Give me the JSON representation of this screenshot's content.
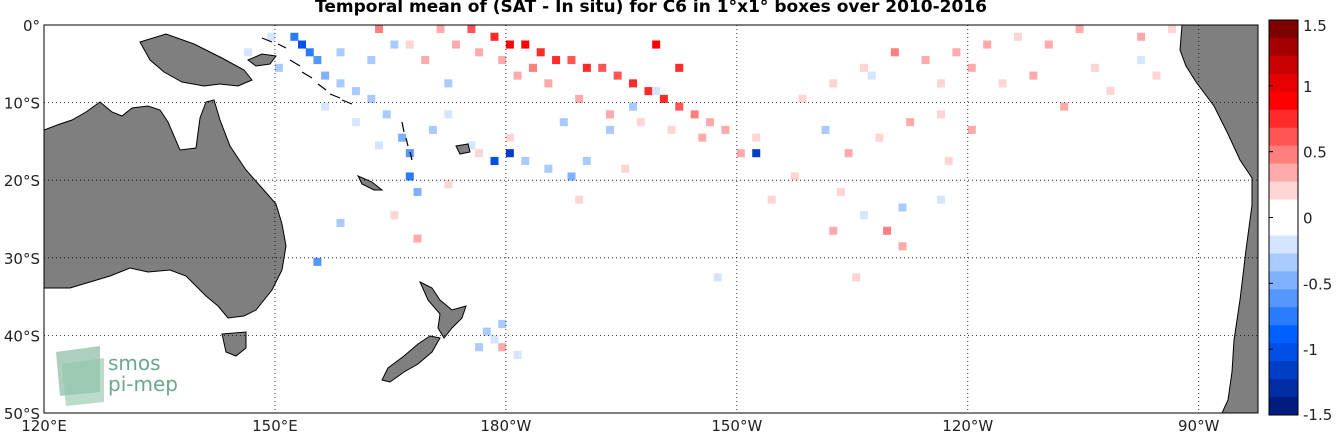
{
  "title": "Temporal mean of (SAT - In situ) for C6 in 1°x1° boxes over 2010-2016",
  "axes": {
    "lat_labels": [
      "0°",
      "10°S",
      "20°S",
      "30°S",
      "40°S",
      "50°S"
    ],
    "lon_labels": [
      "120°E",
      "150°E",
      "180°W",
      "150°W",
      "120°W",
      "90°W"
    ],
    "lon_range_deg_east": [
      120,
      277.7
    ],
    "lat_range": [
      0,
      -50
    ],
    "grid": "dotted"
  },
  "colorbar": {
    "min": -1.5,
    "max": 1.5,
    "tick_labels": [
      "1.5",
      "1",
      "0.5",
      "0",
      "-0.5",
      "-1",
      "-1.5"
    ],
    "tick_values": [
      1.5,
      1,
      0.5,
      0,
      -0.5,
      -1,
      -1.5
    ],
    "colors_top_to_bottom": [
      "#7f0000",
      "#a50000",
      "#c80000",
      "#e60000",
      "#ff0000",
      "#ff2a2a",
      "#ff5555",
      "#ff7f7f",
      "#ffaaaa",
      "#ffd4d4",
      "#ffffff",
      "#ffffff",
      "#d4e6ff",
      "#aacbff",
      "#7fb1ff",
      "#5596ff",
      "#2a7cff",
      "#0061ff",
      "#004fe6",
      "#003ec8",
      "#002ca5",
      "#001c7f"
    ]
  },
  "land_color": "#7f7f7f",
  "logo": {
    "line1": "smos",
    "line2": "pi-mep",
    "color": "#6aa88a"
  },
  "anomaly_cells": [
    {
      "lon": 163,
      "lat": -1,
      "v": 0.5
    },
    {
      "lon": 171,
      "lat": -1,
      "v": 0.3
    },
    {
      "lon": 175,
      "lat": -1,
      "v": 0.6
    },
    {
      "lon": 178,
      "lat": -2,
      "v": 0.7
    },
    {
      "lon": 180,
      "lat": -3,
      "v": 0.9
    },
    {
      "lon": 182,
      "lat": -3,
      "v": 0.9
    },
    {
      "lon": 184,
      "lat": -4,
      "v": 0.8
    },
    {
      "lon": 186,
      "lat": -5,
      "v": 0.7
    },
    {
      "lon": 188,
      "lat": -5,
      "v": 0.6
    },
    {
      "lon": 190,
      "lat": -6,
      "v": 0.7
    },
    {
      "lon": 192,
      "lat": -6,
      "v": 0.6
    },
    {
      "lon": 194,
      "lat": -7,
      "v": 0.6
    },
    {
      "lon": 196,
      "lat": -8,
      "v": 0.7
    },
    {
      "lon": 198,
      "lat": -9,
      "v": 0.8
    },
    {
      "lon": 200,
      "lat": -10,
      "v": 0.7
    },
    {
      "lon": 202,
      "lat": -11,
      "v": 0.6
    },
    {
      "lon": 204,
      "lat": -12,
      "v": 0.5
    },
    {
      "lon": 206,
      "lat": -13,
      "v": 0.4
    },
    {
      "lon": 208,
      "lat": -14,
      "v": 0.3
    },
    {
      "lon": 212,
      "lat": -15,
      "v": 0.2
    },
    {
      "lon": 185,
      "lat": -8,
      "v": 0.4
    },
    {
      "lon": 189,
      "lat": -10,
      "v": 0.3
    },
    {
      "lon": 193,
      "lat": -12,
      "v": 0.3
    },
    {
      "lon": 197,
      "lat": -13,
      "v": 0.2
    },
    {
      "lon": 201,
      "lat": -14,
      "v": 0.2
    },
    {
      "lon": 183,
      "lat": -6,
      "v": 0.5
    },
    {
      "lon": 179,
      "lat": -5,
      "v": 0.4
    },
    {
      "lon": 181,
      "lat": -7,
      "v": 0.3
    },
    {
      "lon": 176,
      "lat": -4,
      "v": 0.3
    },
    {
      "lon": 173,
      "lat": -3,
      "v": 0.3
    },
    {
      "lon": 169,
      "lat": -5,
      "v": 0.3
    },
    {
      "lon": 167,
      "lat": -3,
      "v": 0.2
    },
    {
      "lon": 199,
      "lat": -3,
      "v": 0.9
    },
    {
      "lon": 202,
      "lat": -6,
      "v": 0.8
    },
    {
      "lon": 196,
      "lat": -11,
      "v": 0.4
    },
    {
      "lon": 205,
      "lat": -15,
      "v": 0.3
    },
    {
      "lon": 230,
      "lat": -4,
      "v": 0.5
    },
    {
      "lon": 234,
      "lat": -5,
      "v": 0.3
    },
    {
      "lon": 238,
      "lat": -4,
      "v": 0.3
    },
    {
      "lon": 242,
      "lat": -3,
      "v": 0.3
    },
    {
      "lon": 246,
      "lat": -2,
      "v": 0.2
    },
    {
      "lon": 250,
      "lat": -3,
      "v": 0.3
    },
    {
      "lon": 254,
      "lat": -1,
      "v": 0.3
    },
    {
      "lon": 226,
      "lat": -6,
      "v": 0.2
    },
    {
      "lon": 222,
      "lat": -8,
      "v": 0.2
    },
    {
      "lon": 218,
      "lat": -10,
      "v": 0.2
    },
    {
      "lon": 236,
      "lat": -8,
      "v": 0.2
    },
    {
      "lon": 240,
      "lat": -6,
      "v": 0.3
    },
    {
      "lon": 244,
      "lat": -8,
      "v": 0.2
    },
    {
      "lon": 248,
      "lat": -7,
      "v": 0.3
    },
    {
      "lon": 256,
      "lat": -6,
      "v": 0.2
    },
    {
      "lon": 262,
      "lat": -2,
      "v": 0.3
    },
    {
      "lon": 266,
      "lat": -1,
      "v": 0.2
    },
    {
      "lon": 270,
      "lat": -1,
      "v": 0.3
    },
    {
      "lon": 232,
      "lat": -13,
      "v": 0.3
    },
    {
      "lon": 236,
      "lat": -12,
      "v": 0.2
    },
    {
      "lon": 240,
      "lat": -14,
      "v": 0.3
    },
    {
      "lon": 228,
      "lat": -15,
      "v": 0.2
    },
    {
      "lon": 237,
      "lat": -18,
      "v": 0.2
    },
    {
      "lon": 224,
      "lat": -17,
      "v": 0.3
    },
    {
      "lon": 210,
      "lat": -17,
      "v": 0.3
    },
    {
      "lon": 214,
      "lat": -23,
      "v": 0.2
    },
    {
      "lon": 222,
      "lat": -27,
      "v": 0.4
    },
    {
      "lon": 229,
      "lat": -27,
      "v": 0.5
    },
    {
      "lon": 231,
      "lat": -29,
      "v": 0.3
    },
    {
      "lon": 225,
      "lat": -33,
      "v": 0.2
    },
    {
      "lon": 180,
      "lat": -15,
      "v": 0.2
    },
    {
      "lon": 176,
      "lat": -17,
      "v": 0.2
    },
    {
      "lon": 172,
      "lat": -21,
      "v": 0.2
    },
    {
      "lon": 168,
      "lat": -28,
      "v": 0.3
    },
    {
      "lon": 165,
      "lat": -25,
      "v": 0.2
    },
    {
      "lon": 179,
      "lat": -42,
      "v": 0.4
    },
    {
      "lon": 189,
      "lat": -23,
      "v": 0.2
    },
    {
      "lon": 195,
      "lat": -19,
      "v": 0.2
    },
    {
      "lon": 217,
      "lat": -20,
      "v": 0.2
    },
    {
      "lon": 223,
      "lat": -22,
      "v": 0.2
    },
    {
      "lon": 264,
      "lat": -7,
      "v": 0.2
    },
    {
      "lon": 258,
      "lat": -9,
      "v": 0.2
    },
    {
      "lon": 252,
      "lat": -11,
      "v": 0.3
    },
    {
      "lon": 152,
      "lat": -2,
      "v": -0.7
    },
    {
      "lon": 153,
      "lat": -3,
      "v": -1.0
    },
    {
      "lon": 154,
      "lat": -4,
      "v": -0.8
    },
    {
      "lon": 155,
      "lat": -5,
      "v": -0.6
    },
    {
      "lon": 156,
      "lat": -7,
      "v": -0.5
    },
    {
      "lon": 158,
      "lat": -8,
      "v": -0.4
    },
    {
      "lon": 160,
      "lat": -9,
      "v": -0.3
    },
    {
      "lon": 162,
      "lat": -10,
      "v": -0.3
    },
    {
      "lon": 164,
      "lat": -12,
      "v": -0.4
    },
    {
      "lon": 166,
      "lat": -15,
      "v": -0.5
    },
    {
      "lon": 167,
      "lat": -17,
      "v": -0.6
    },
    {
      "lon": 167,
      "lat": -20,
      "v": -0.8
    },
    {
      "lon": 168,
      "lat": -22,
      "v": -0.5
    },
    {
      "lon": 170,
      "lat": -14,
      "v": -0.3
    },
    {
      "lon": 172,
      "lat": -12,
      "v": -0.2
    },
    {
      "lon": 175,
      "lat": -16,
      "v": -0.2
    },
    {
      "lon": 178,
      "lat": -18,
      "v": -1.0
    },
    {
      "lon": 180,
      "lat": -17,
      "v": -1.2
    },
    {
      "lon": 182,
      "lat": -18,
      "v": -0.4
    },
    {
      "lon": 185,
      "lat": -19,
      "v": -0.3
    },
    {
      "lon": 188,
      "lat": -20,
      "v": -0.5
    },
    {
      "lon": 190,
      "lat": -18,
      "v": -0.3
    },
    {
      "lon": 193,
      "lat": -14,
      "v": -0.4
    },
    {
      "lon": 196,
      "lat": -11,
      "v": -0.3
    },
    {
      "lon": 199,
      "lat": -9,
      "v": -0.2
    },
    {
      "lon": 212,
      "lat": -17,
      "v": -1.2
    },
    {
      "lon": 165,
      "lat": -3,
      "v": -0.3
    },
    {
      "lon": 162,
      "lat": -5,
      "v": -0.4
    },
    {
      "lon": 158,
      "lat": -4,
      "v": -0.3
    },
    {
      "lon": 149,
      "lat": -2,
      "v": -0.2
    },
    {
      "lon": 146,
      "lat": -4,
      "v": -0.2
    },
    {
      "lon": 150,
      "lat": -6,
      "v": -0.3
    },
    {
      "lon": 156,
      "lat": -11,
      "v": -0.2
    },
    {
      "lon": 160,
      "lat": -13,
      "v": -0.2
    },
    {
      "lon": 163,
      "lat": -16,
      "v": -0.2
    },
    {
      "lon": 158,
      "lat": -26,
      "v": -0.3
    },
    {
      "lon": 155,
      "lat": -31,
      "v": -0.6
    },
    {
      "lon": 177,
      "lat": -40,
      "v": -0.4
    },
    {
      "lon": 179,
      "lat": -39,
      "v": -0.3
    },
    {
      "lon": 178,
      "lat": -41,
      "v": -0.2
    },
    {
      "lon": 176,
      "lat": -42,
      "v": -0.3
    },
    {
      "lon": 181,
      "lat": -43,
      "v": -0.2
    },
    {
      "lon": 221,
      "lat": -14,
      "v": -0.3
    },
    {
      "lon": 226,
      "lat": -25,
      "v": -0.2
    },
    {
      "lon": 231,
      "lat": -24,
      "v": -0.3
    },
    {
      "lon": 236,
      "lat": -23,
      "v": -0.2
    },
    {
      "lon": 207,
      "lat": -33,
      "v": -0.2
    },
    {
      "lon": 227,
      "lat": -7,
      "v": -0.2
    },
    {
      "lon": 262,
      "lat": -5,
      "v": -0.2
    },
    {
      "lon": 270,
      "lat": -3,
      "v": -0.2
    },
    {
      "lon": 187,
      "lat": -13,
      "v": -0.3
    },
    {
      "lon": 172,
      "lat": -8,
      "v": -0.3
    }
  ]
}
